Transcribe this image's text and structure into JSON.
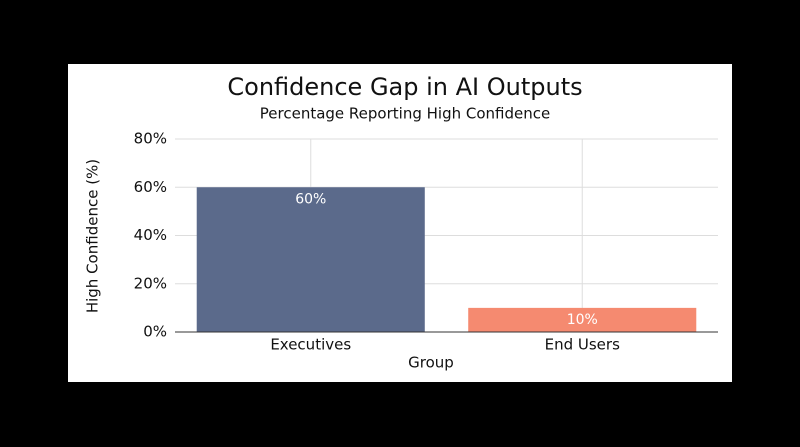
{
  "chart_data": {
    "type": "bar",
    "title": "Confidence Gap in AI Outputs",
    "subtitle": "Percentage Reporting High Confidence",
    "x_label": "Group",
    "y_label": "High Confidence (%)",
    "categories": [
      "Executives",
      "End Users"
    ],
    "values": [
      60,
      10
    ],
    "value_labels": [
      "60%",
      "10%"
    ],
    "colors": [
      "#5b6a8b",
      "#f58a70"
    ],
    "ylim": [
      0,
      80
    ],
    "yticks": [
      {
        "value": 0,
        "label": "0%"
      },
      {
        "value": 20,
        "label": "20%"
      },
      {
        "value": 40,
        "label": "40%"
      },
      {
        "value": 60,
        "label": "60%"
      },
      {
        "value": 80,
        "label": "80%"
      }
    ],
    "grid": true
  }
}
